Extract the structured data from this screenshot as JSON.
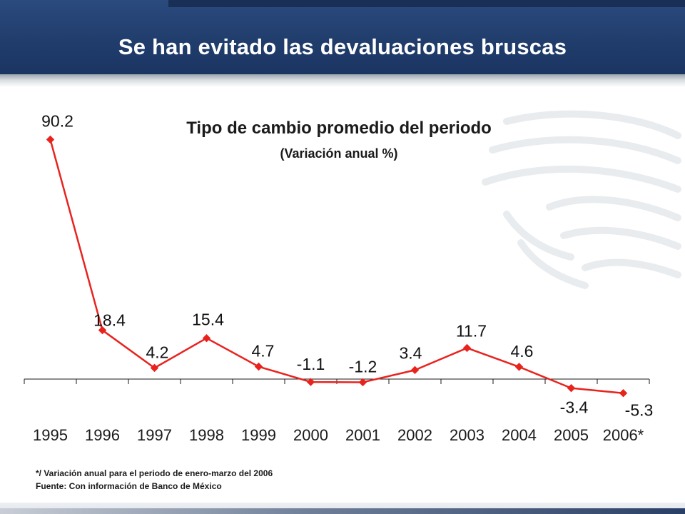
{
  "header": {
    "title": "Se han evitado las devaluaciones bruscas"
  },
  "chart_data": {
    "type": "line",
    "title": "Tipo de cambio promedio del periodo",
    "subtitle": "(Variación anual %)",
    "categories": [
      "1995",
      "1996",
      "1997",
      "1998",
      "1999",
      "2000",
      "2001",
      "2002",
      "2003",
      "2004",
      "2005",
      "2006*"
    ],
    "series": [
      {
        "values": [
          90.2,
          18.4,
          4.2,
          15.4,
          4.7,
          -1.1,
          -1.2,
          3.4,
          11.7,
          4.6,
          -3.4,
          -5.3
        ],
        "labels": [
          "90.2",
          "18.4",
          "4.2",
          "15.4",
          "4.7",
          "-1.1",
          "-1.2",
          "3.4",
          "11.7",
          "4.6",
          "-3.4",
          "-5.3"
        ],
        "color": "#e8231e"
      }
    ],
    "ylim": [
      -6,
      95
    ],
    "grid": false,
    "legend": "none"
  },
  "notes": {
    "footnote": "*/ Variación anual para el periodo de enero-marzo del 2006",
    "source": "Fuente: Con información de Banco de México"
  },
  "colors": {
    "header": "#203d6c",
    "line": "#e8231e",
    "text": "#1a1a1a"
  }
}
